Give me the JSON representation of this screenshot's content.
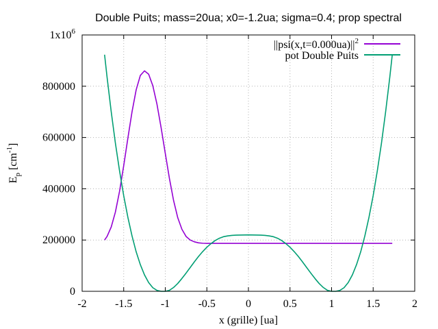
{
  "chart_data": {
    "type": "line",
    "title": "Double Puits; mass=20ua; x0=-1.2ua; sigma=0.4; prop spectral",
    "xlabel": "x (grille) [ua]",
    "ylabel_main": "E",
    "ylabel_sub": "p",
    "ylabel_unit": " [cm",
    "ylabel_exp": "-1",
    "ylabel_close": "]",
    "xlim": [
      -2,
      2
    ],
    "ylim": [
      0,
      1000000
    ],
    "x_ticks": [
      -2,
      -1.5,
      -1,
      -0.5,
      0,
      0.5,
      1,
      1.5,
      2
    ],
    "x_tick_labels": [
      "-2",
      "-1.5",
      "-1",
      "-0.5",
      "0",
      "0.5",
      "1",
      "1.5",
      "2"
    ],
    "y_ticks": [
      0,
      200000,
      400000,
      600000,
      800000
    ],
    "y_tick_labels": [
      "0",
      "200000",
      "400000",
      "600000",
      "800000"
    ],
    "y_top_label_base": "1x10",
    "y_top_label_exp": "6",
    "grid": true,
    "legend_position": "top-right",
    "series": [
      {
        "name": "||psi(x,t=0.000ua)||",
        "name_sup": "2",
        "color": "#9400d3",
        "x": [
          -1.73,
          -1.7,
          -1.65,
          -1.6,
          -1.55,
          -1.5,
          -1.45,
          -1.4,
          -1.35,
          -1.3,
          -1.25,
          -1.2,
          -1.15,
          -1.1,
          -1.05,
          -1.0,
          -0.95,
          -0.9,
          -0.85,
          -0.8,
          -0.75,
          -0.7,
          -0.65,
          -0.6,
          -0.55,
          -0.5,
          -0.45,
          -0.4,
          -0.3,
          0.0,
          0.5,
          1.0,
          1.5,
          1.73
        ],
        "y": [
          200000,
          214000,
          251000,
          309000,
          390000,
          490000,
          597000,
          700000,
          786000,
          842000,
          860000,
          847000,
          802000,
          730000,
          638000,
          538000,
          440000,
          354000,
          287000,
          242000,
          214000,
          200000,
          193000,
          189000,
          187500,
          187000,
          187000,
          187000,
          187000,
          187000,
          187000,
          187000,
          187000,
          187000
        ]
      },
      {
        "name": "pot Double Puits",
        "color": "#009e73",
        "x": [
          -1.73,
          -1.7,
          -1.65,
          -1.6,
          -1.55,
          -1.5,
          -1.45,
          -1.4,
          -1.35,
          -1.3,
          -1.25,
          -1.2,
          -1.15,
          -1.1,
          -1.05,
          -1.0,
          -0.95,
          -0.9,
          -0.85,
          -0.8,
          -0.75,
          -0.7,
          -0.65,
          -0.6,
          -0.55,
          -0.5,
          -0.45,
          -0.4,
          -0.35,
          -0.3,
          -0.25,
          -0.2,
          -0.15,
          -0.1,
          -0.05,
          0.0,
          0.05,
          0.1,
          0.15,
          0.2,
          0.25,
          0.3,
          0.35,
          0.4,
          0.45,
          0.5,
          0.55,
          0.6,
          0.65,
          0.7,
          0.75,
          0.8,
          0.85,
          0.9,
          0.95,
          1.0,
          1.05,
          1.1,
          1.15,
          1.2,
          1.25,
          1.3,
          1.35,
          1.4,
          1.45,
          1.5,
          1.55,
          1.6,
          1.65,
          1.7,
          1.73
        ],
        "y": [
          923000,
          835000,
          700000,
          578000,
          470000,
          373000,
          289000,
          216000,
          154000,
          104000,
          64000,
          34000,
          14000,
          3500,
          0,
          0,
          3900,
          15000,
          30600,
          50000,
          71000,
          93000,
          115000,
          136000,
          155000,
          172000,
          186000,
          198000,
          207000,
          213000,
          216000,
          218000,
          219000,
          219500,
          219800,
          220000,
          219800,
          219500,
          219000,
          218000,
          216000,
          213000,
          207000,
          198000,
          186000,
          172000,
          155000,
          136000,
          115000,
          93000,
          71000,
          50000,
          30600,
          15000,
          3900,
          0,
          0,
          3500,
          14000,
          34000,
          64000,
          104000,
          154000,
          216000,
          289000,
          373000,
          470000,
          578000,
          700000,
          835000,
          923000
        ]
      }
    ]
  }
}
